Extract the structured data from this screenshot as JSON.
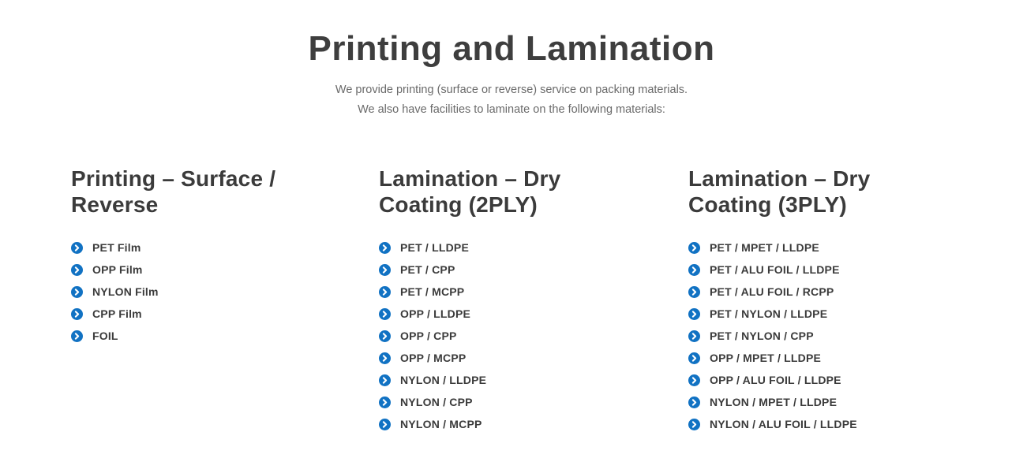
{
  "page": {
    "title": "Printing and Lamination",
    "subtitle_line1": "We provide printing (surface or reverse) service on packing materials.",
    "subtitle_line2": "We also have facilities to laminate on the following materials:"
  },
  "columns": [
    {
      "heading": "Printing – Surface / Reverse",
      "items": [
        "PET Film",
        "OPP Film",
        "NYLON Film",
        "CPP Film",
        "FOIL"
      ]
    },
    {
      "heading": "Lamination – Dry Coating (2PLY)",
      "items": [
        "PET / LLDPE",
        "PET / CPP",
        "PET / MCPP",
        "OPP / LLDPE",
        "OPP / CPP",
        "OPP / MCPP",
        "NYLON / LLDPE",
        "NYLON / CPP",
        "NYLON / MCPP"
      ]
    },
    {
      "heading": "Lamination – Dry Coating (3PLY)",
      "items": [
        "PET / MPET / LLDPE",
        "PET / ALU FOIL / LLDPE",
        "PET / ALU FOIL / RCPP",
        "PET / NYLON / LLDPE",
        "PET / NYLON / CPP",
        "OPP / MPET / LLDPE",
        "OPP / ALU FOIL / LLDPE",
        "NYLON / MPET / LLDPE",
        "NYLON / ALU FOIL / LLDPE"
      ]
    }
  ],
  "icons": {
    "list_bullet": "chevron-circle-right"
  },
  "colors": {
    "title_text": "#3e3e3e",
    "heading_text": "#3b3b3b",
    "item_text": "#3b3b3b",
    "subtitle_text": "#6a6a6a",
    "bullet_blue": "#1172c3",
    "bullet_chevron": "#ffffff",
    "background": "#ffffff"
  }
}
